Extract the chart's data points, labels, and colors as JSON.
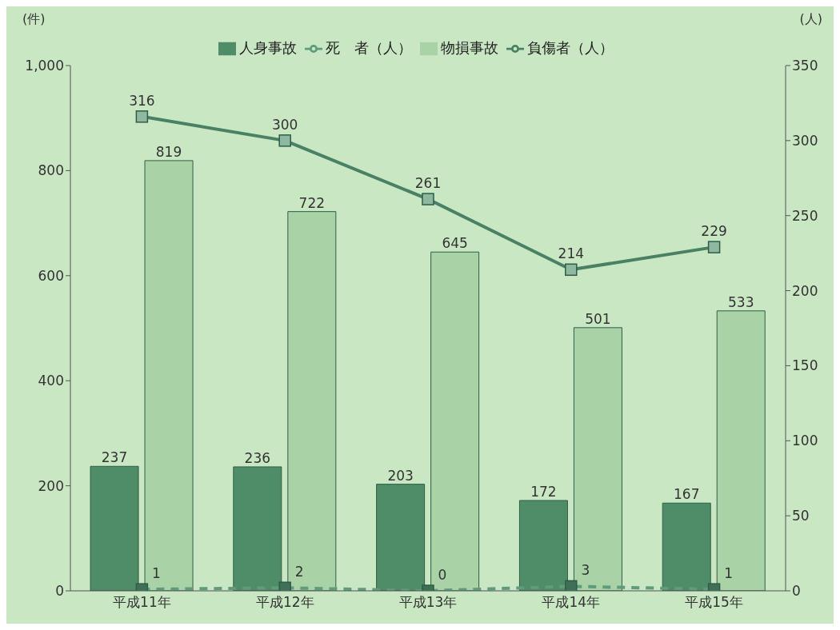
{
  "chart_data": {
    "type": "bar",
    "categories": [
      "平成11年",
      "平成12年",
      "平成13年",
      "平成14年",
      "平成15年"
    ],
    "ylabel": "(件)",
    "y2label": "(人)",
    "ylim": [
      0,
      1000
    ],
    "yticks": [
      0,
      200,
      400,
      600,
      800,
      {
        "value": 1000,
        "label": "1,000"
      }
    ],
    "y2lim": [
      0,
      350
    ],
    "y2ticks": [
      0,
      50,
      100,
      150,
      200,
      250,
      300,
      350
    ],
    "series": [
      {
        "name": "人身事故",
        "color": "#4f8d68",
        "values": [
          237,
          236,
          203,
          172,
          167
        ]
      },
      {
        "name": "物損事故",
        "color": "#a9d3a6",
        "values": [
          819,
          722,
          645,
          501,
          533
        ]
      },
      {
        "name": "負傷者（人）",
        "type": "line",
        "axis": "y2",
        "color": "#4a8164",
        "line_style": "solid",
        "values": [
          316,
          300,
          261,
          214,
          229
        ]
      },
      {
        "name": "死　者（人）",
        "type": "line",
        "axis": "y2",
        "color": "#5f9c7c",
        "line_style": "dashed",
        "values": [
          1,
          2,
          0,
          3,
          1
        ]
      }
    ],
    "data_labels": true,
    "legend": "top",
    "marker": "square"
  }
}
